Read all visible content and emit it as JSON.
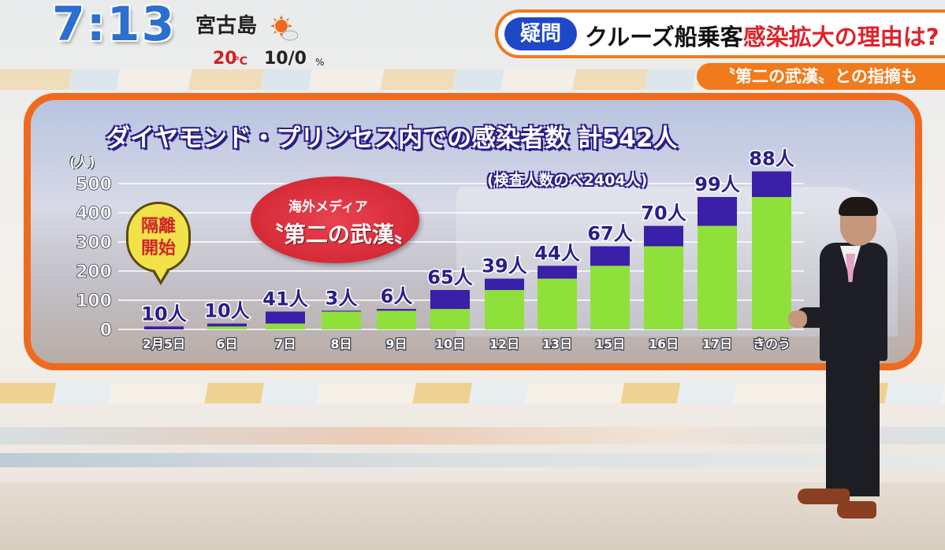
{
  "clock": "7:13",
  "weather": {
    "place": "宮古島",
    "icon": "sun-cloud-icon",
    "temperature": "20",
    "temperature_unit": "℃",
    "precipitation": "10/0",
    "precipitation_unit": "%"
  },
  "headline": {
    "tag": "疑問",
    "text_black": "クルーズ船乗客",
    "text_red": "感染拡大の理由は?",
    "sub": "〝第二の武漢〟との指摘も"
  },
  "annotations": {
    "bubble": "隔離\n開始",
    "oval_top": "海外メディア",
    "oval_main": "〝第二の武漢〟"
  },
  "colors": {
    "accent": "#f06a1e",
    "tag_blue": "#1e48c6",
    "bar_green": "#8fe03a",
    "bar_purple": "#3a1fa8",
    "title_outline": "#2b1e8a"
  },
  "chart_data": {
    "type": "bar",
    "title": "ダイヤモンド・プリンセス内での感染者数 計542人",
    "subtitle": "(検査人数のべ2404人)",
    "ylabel": "(人)",
    "ylim": [
      0,
      500
    ],
    "yticks": [
      "500",
      "400",
      "300",
      "200",
      "100",
      "0"
    ],
    "categories": [
      "2月5日",
      "6日",
      "7日",
      "8日",
      "9日",
      "10日",
      "12日",
      "13日",
      "15日",
      "16日",
      "17日",
      "きのう"
    ],
    "series": [
      {
        "values": [
          0,
          10,
          20,
          61,
          64,
          70,
          135,
          174,
          218,
          285,
          355,
          454
        ]
      },
      {
        "values": [
          10,
          10,
          41,
          3,
          6,
          65,
          39,
          44,
          67,
          70,
          99,
          88
        ]
      }
    ],
    "data_labels": [
      "10人",
      "10人",
      "41人",
      "3人",
      "6人",
      "65人",
      "39人",
      "44人",
      "67人",
      "70人",
      "99人",
      "88人"
    ]
  }
}
